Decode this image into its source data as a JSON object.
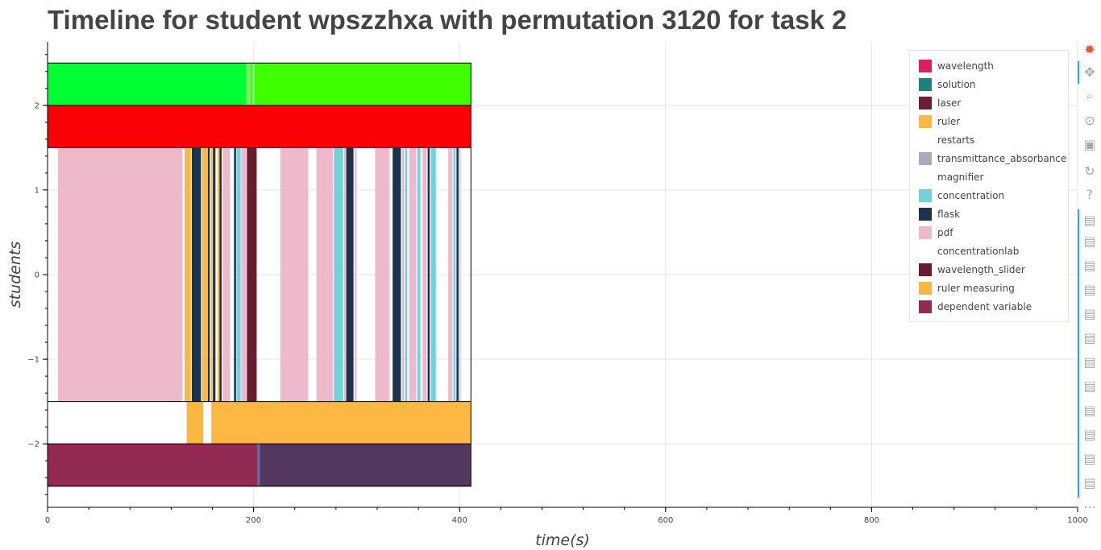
{
  "title": "Timeline for student wpszzhxa with permutation 3120 for task 2",
  "chart_data": {
    "type": "timeline",
    "xlabel": "time(s)",
    "ylabel": "students",
    "xlim": [
      0,
      1000
    ],
    "ylim": [
      -2.75,
      2.75
    ],
    "x_ticks": [
      0,
      200,
      400,
      600,
      800,
      1000
    ],
    "y_ticks": [
      -2,
      -1,
      0,
      1,
      2
    ],
    "grid": true,
    "legend_position": "top-right",
    "lanes": [
      {
        "y": [
          2.0,
          2.5
        ],
        "segments": [
          {
            "start": 0,
            "end": 193,
            "color": "#00ff33"
          },
          {
            "start": 193,
            "end": 197,
            "color": "#88ee55"
          },
          {
            "start": 197,
            "end": 198.5,
            "color": "#00ff33"
          },
          {
            "start": 198.5,
            "end": 201,
            "color": "#88ee55"
          },
          {
            "start": 201,
            "end": 411,
            "color": "#3fff00"
          }
        ]
      },
      {
        "y": [
          1.5,
          2.0
        ],
        "segments": [
          {
            "start": 0,
            "end": 411,
            "color": "#fa0006"
          }
        ]
      },
      {
        "y": [
          -1.5,
          1.5
        ],
        "segments": [
          {
            "start": 10,
            "end": 131,
            "color": "#efb9cc"
          },
          {
            "start": 133,
            "end": 139,
            "color": "#fdb843"
          },
          {
            "start": 140,
            "end": 149,
            "color": "#1b3449"
          },
          {
            "start": 150,
            "end": 155,
            "color": "#fdb843"
          },
          {
            "start": 155.5,
            "end": 157.5,
            "color": "#1b3449"
          },
          {
            "start": 158.5,
            "end": 160,
            "color": "#fdb843"
          },
          {
            "start": 160.5,
            "end": 163,
            "color": "#1b3449"
          },
          {
            "start": 165,
            "end": 167,
            "color": "#fdb843"
          },
          {
            "start": 167,
            "end": 169,
            "color": "#1b3449"
          },
          {
            "start": 170,
            "end": 177,
            "color": "#efb9cc"
          },
          {
            "start": 181,
            "end": 183,
            "color": "#1b3449"
          },
          {
            "start": 183.5,
            "end": 187.5,
            "color": "#72d1da"
          },
          {
            "start": 188,
            "end": 193,
            "color": "#efb9cc"
          },
          {
            "start": 193.5,
            "end": 203,
            "color": "#691c30"
          },
          {
            "start": 226,
            "end": 253,
            "color": "#efb9cc"
          },
          {
            "start": 261,
            "end": 277,
            "color": "#efb9cc"
          },
          {
            "start": 278,
            "end": 287,
            "color": "#72d1da"
          },
          {
            "start": 288,
            "end": 290,
            "color": "#efb9cc"
          },
          {
            "start": 290,
            "end": 297,
            "color": "#1b3449"
          },
          {
            "start": 298,
            "end": 300,
            "color": "#efb9cc"
          },
          {
            "start": 318,
            "end": 332,
            "color": "#efb9cc"
          },
          {
            "start": 335,
            "end": 343,
            "color": "#1b3449"
          },
          {
            "start": 344,
            "end": 346,
            "color": "#efb9cc"
          },
          {
            "start": 347,
            "end": 349,
            "color": "#72d1da"
          },
          {
            "start": 351,
            "end": 358,
            "color": "#efb9cc"
          },
          {
            "start": 359,
            "end": 362,
            "color": "#72d1da"
          },
          {
            "start": 364,
            "end": 368,
            "color": "#efb9cc"
          },
          {
            "start": 369,
            "end": 371,
            "color": "#1b3449"
          },
          {
            "start": 372,
            "end": 377,
            "color": "#72d1da"
          },
          {
            "start": 389,
            "end": 393,
            "color": "#efb9cc"
          },
          {
            "start": 394,
            "end": 396,
            "color": "#72d1da"
          },
          {
            "start": 397,
            "end": 399,
            "color": "#1b3449"
          },
          {
            "start": 399.5,
            "end": 401,
            "color": "#efb9cc"
          }
        ]
      },
      {
        "y": [
          -2.0,
          -1.5
        ],
        "segments": [
          {
            "start": 135,
            "end": 151,
            "color": "#fdb843"
          },
          {
            "start": 159,
            "end": 411,
            "color": "#fdb843"
          }
        ]
      },
      {
        "y": [
          -2.5,
          -2.0
        ],
        "segments": [
          {
            "start": 0,
            "end": 204,
            "color": "#932a51"
          },
          {
            "start": 204,
            "end": 206,
            "color": "#4f73a8"
          },
          {
            "start": 206,
            "end": 411,
            "color": "#523760"
          }
        ]
      }
    ],
    "frame": {
      "x": [
        0,
        411
      ],
      "y": [
        -2.5,
        2.5
      ]
    },
    "legend": [
      {
        "label": "wavelength",
        "color": "#dc1e5d"
      },
      {
        "label": "solution",
        "color": "#21807d"
      },
      {
        "label": "laser",
        "color": "#701c33"
      },
      {
        "label": "ruler",
        "color": "#fdb843"
      },
      {
        "label": "restarts",
        "color": "#ffffff"
      },
      {
        "label": "transmittance_absorbance",
        "color": "#a3adbd"
      },
      {
        "label": "magnifier",
        "color": "#ffffff"
      },
      {
        "label": "concentration",
        "color": "#72d1da"
      },
      {
        "label": "flask",
        "color": "#1b3449"
      },
      {
        "label": "pdf",
        "color": "#efb9cc"
      },
      {
        "label": "concentrationlab",
        "color": "#ffffff"
      },
      {
        "label": "wavelength_slider",
        "color": "#691c30"
      },
      {
        "label": "ruler measuring",
        "color": "#fdb843"
      },
      {
        "label": "dependent variable",
        "color": "#932a51"
      }
    ]
  },
  "toolbar": {
    "tools": [
      "bokeh-logo-icon",
      "pan-icon",
      "box-zoom-icon",
      "wheel-zoom-icon",
      "save-icon",
      "reset-icon",
      "help-icon",
      "hover-icon",
      "hover-icon",
      "hover-icon",
      "hover-icon",
      "hover-icon",
      "hover-icon",
      "hover-icon",
      "hover-icon",
      "hover-icon",
      "hover-icon",
      "hover-icon",
      "hover-icon"
    ],
    "more": "..."
  }
}
